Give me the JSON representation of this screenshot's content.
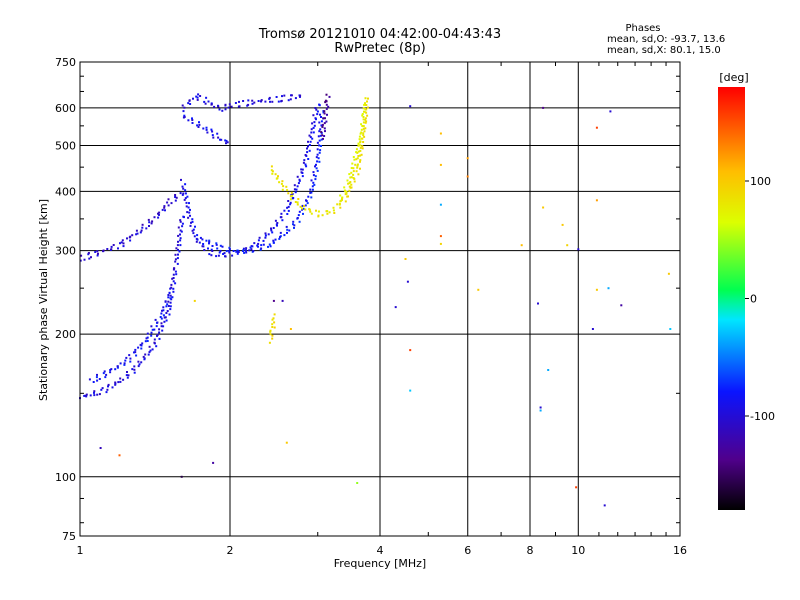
{
  "chart_data": {
    "type": "scatter",
    "title": "Tromsø 20121010 04:42:00-04:43:43",
    "subtitle": "RwPretec (8p)",
    "xlabel": "Frequency [MHz]",
    "ylabel": "Stationary phase Virtual Height [km]",
    "x_scale": "log",
    "y_scale": "log",
    "xlim": [
      1,
      16
    ],
    "ylim": [
      75,
      750
    ],
    "x_ticks": [
      1,
      2,
      4,
      6,
      8,
      10,
      16
    ],
    "y_ticks": [
      75,
      100,
      200,
      300,
      400,
      500,
      600,
      750
    ],
    "grid": true,
    "info": {
      "heading": "Phases",
      "line1": "mean, sd,O: -93.7, 13.6",
      "line2": "mean, sd,X: 80.1, 15.0"
    },
    "colorbar": {
      "label": "[deg]",
      "range": [
        -180,
        180
      ],
      "ticks": [
        -100,
        0,
        100
      ]
    },
    "traces": [
      {
        "x": [
          1.0,
          1.1,
          1.2,
          1.3,
          1.4,
          1.5,
          1.55,
          1.6
        ],
        "y": [
          148,
          152,
          160,
          172,
          190,
          225,
          280,
          360
        ],
        "phase": -105
      },
      {
        "x": [
          1.05,
          1.15,
          1.25,
          1.35,
          1.45,
          1.52
        ],
        "y": [
          160,
          168,
          178,
          195,
          220,
          250
        ],
        "phase": -95
      },
      {
        "x": [
          1.6,
          1.65,
          1.7,
          1.8,
          1.9,
          2.0,
          2.2,
          2.4,
          2.6,
          2.8,
          3.0
        ],
        "y": [
          420,
          360,
          320,
          300,
          295,
          296,
          305,
          330,
          370,
          450,
          620
        ],
        "phase": -100
      },
      {
        "x": [
          1.75,
          1.9,
          2.1,
          2.4,
          2.7,
          2.9,
          3.0,
          3.05
        ],
        "y": [
          320,
          305,
          300,
          310,
          345,
          400,
          480,
          600
        ],
        "phase": -90
      },
      {
        "x": [
          1.0,
          1.1,
          1.2,
          1.3,
          1.4,
          1.5,
          1.6
        ],
        "y": [
          290,
          300,
          310,
          330,
          350,
          380,
          400
        ],
        "phase": -110
      },
      {
        "x": [
          1.6,
          1.7,
          1.8,
          1.9,
          2.0,
          2.2,
          2.5,
          2.8
        ],
        "y": [
          600,
          640,
          620,
          600,
          610,
          620,
          630,
          640
        ],
        "phase": -105
      },
      {
        "x": [
          1.6,
          1.7,
          1.8,
          1.9,
          2.0
        ],
        "y": [
          580,
          560,
          540,
          520,
          505
        ],
        "phase": -100
      },
      {
        "x": [
          3.05,
          3.08,
          3.1,
          3.12,
          3.15
        ],
        "y": [
          520,
          560,
          600,
          630,
          650
        ],
        "phase": -135
      },
      {
        "x": [
          2.4,
          2.6,
          2.8,
          3.0,
          3.2,
          3.4,
          3.6,
          3.7,
          3.75
        ],
        "y": [
          450,
          400,
          370,
          360,
          365,
          390,
          450,
          550,
          640
        ],
        "phase": 85
      },
      {
        "x": [
          3.3,
          3.45,
          3.55,
          3.65,
          3.7,
          3.72
        ],
        "y": [
          380,
          420,
          470,
          520,
          580,
          620
        ],
        "phase": 75
      },
      {
        "x": [
          2.4,
          2.42,
          2.44,
          2.45
        ],
        "y": [
          195,
          205,
          215,
          222
        ],
        "phase": 95
      }
    ],
    "points": [
      {
        "x": 1.1,
        "y": 115,
        "phase": -120
      },
      {
        "x": 1.2,
        "y": 111,
        "phase": 150
      },
      {
        "x": 1.6,
        "y": 100,
        "phase": -160
      },
      {
        "x": 1.85,
        "y": 107,
        "phase": -130
      },
      {
        "x": 2.6,
        "y": 118,
        "phase": 110
      },
      {
        "x": 2.65,
        "y": 205,
        "phase": 120
      },
      {
        "x": 2.45,
        "y": 235,
        "phase": -140
      },
      {
        "x": 2.55,
        "y": 235,
        "phase": -120
      },
      {
        "x": 1.7,
        "y": 235,
        "phase": 100
      },
      {
        "x": 3.6,
        "y": 97,
        "phase": 40
      },
      {
        "x": 4.3,
        "y": 228,
        "phase": -110
      },
      {
        "x": 4.5,
        "y": 288,
        "phase": 110
      },
      {
        "x": 4.55,
        "y": 258,
        "phase": -110
      },
      {
        "x": 4.6,
        "y": 185,
        "phase": 160
      },
      {
        "x": 4.6,
        "y": 152,
        "phase": -30
      },
      {
        "x": 4.6,
        "y": 605,
        "phase": -110
      },
      {
        "x": 5.3,
        "y": 375,
        "phase": -40
      },
      {
        "x": 5.3,
        "y": 322,
        "phase": 150
      },
      {
        "x": 5.3,
        "y": 310,
        "phase": 100
      },
      {
        "x": 5.3,
        "y": 530,
        "phase": 120
      },
      {
        "x": 5.3,
        "y": 455,
        "phase": 120
      },
      {
        "x": 6.0,
        "y": 470,
        "phase": 130
      },
      {
        "x": 6.0,
        "y": 430,
        "phase": 140
      },
      {
        "x": 6.3,
        "y": 248,
        "phase": 110
      },
      {
        "x": 7.7,
        "y": 308,
        "phase": 120
      },
      {
        "x": 8.3,
        "y": 232,
        "phase": -110
      },
      {
        "x": 8.4,
        "y": 140,
        "phase": -110
      },
      {
        "x": 8.4,
        "y": 138,
        "phase": -40
      },
      {
        "x": 8.5,
        "y": 370,
        "phase": 110
      },
      {
        "x": 8.5,
        "y": 600,
        "phase": -140
      },
      {
        "x": 8.7,
        "y": 168,
        "phase": -40
      },
      {
        "x": 9.3,
        "y": 340,
        "phase": 110
      },
      {
        "x": 9.5,
        "y": 308,
        "phase": 100
      },
      {
        "x": 9.9,
        "y": 95,
        "phase": 160
      },
      {
        "x": 10.0,
        "y": 302,
        "phase": -110
      },
      {
        "x": 10.7,
        "y": 205,
        "phase": -110
      },
      {
        "x": 10.9,
        "y": 545,
        "phase": 160
      },
      {
        "x": 10.9,
        "y": 383,
        "phase": 130
      },
      {
        "x": 10.9,
        "y": 248,
        "phase": 110
      },
      {
        "x": 11.3,
        "y": 87,
        "phase": -110
      },
      {
        "x": 11.5,
        "y": 250,
        "phase": -40
      },
      {
        "x": 11.6,
        "y": 590,
        "phase": -110
      },
      {
        "x": 12.2,
        "y": 230,
        "phase": -130
      },
      {
        "x": 15.2,
        "y": 268,
        "phase": 110
      },
      {
        "x": 15.3,
        "y": 205,
        "phase": -30
      }
    ]
  }
}
